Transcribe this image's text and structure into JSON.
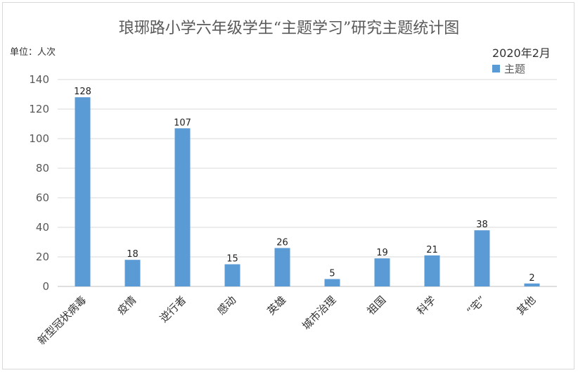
{
  "chart_data": {
    "type": "bar",
    "title": "琅琊路小学六年级学生“主题学习”研究主题统计图",
    "unit_label": "单位：人次",
    "date_label": "2020年2月",
    "series": [
      {
        "name": "主题",
        "values": [
          128,
          18,
          107,
          15,
          26,
          5,
          19,
          21,
          38,
          2
        ]
      }
    ],
    "categories": [
      "新型冠状病毒",
      "疫情",
      "逆行者",
      "感动",
      "英雄",
      "城市治理",
      "祖国",
      "科学",
      "“宅”",
      "其他"
    ],
    "ylim": [
      0,
      140
    ],
    "yticks": [
      0,
      20,
      40,
      60,
      80,
      100,
      120,
      140
    ],
    "grid": true,
    "legend_position": "top-right",
    "bar_color": "#5b9bd5"
  }
}
